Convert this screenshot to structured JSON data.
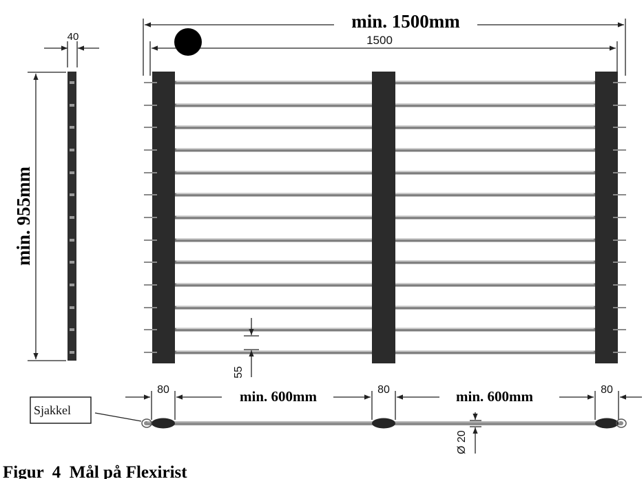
{
  "figure": {
    "caption": "Figur  4  Mål på Flexirist",
    "dimensions": {
      "overall_width_min": "min. 1500mm",
      "overall_width": "1500",
      "height_min": "min. 955mm",
      "post_depth": "40",
      "rod_spacing": "55",
      "end_post_width_left": "80",
      "middle_post_width": "80",
      "end_post_width_right": "80",
      "span_left_min": "min. 600mm",
      "span_right_min": "min. 600mm",
      "rod_diameter": "Ø 20"
    },
    "callout_label": "Sjakkel",
    "rod_count": 13,
    "colors": {
      "post": "#2b2b2b",
      "rod": "#7d7d7d",
      "ink": "#111111"
    }
  }
}
